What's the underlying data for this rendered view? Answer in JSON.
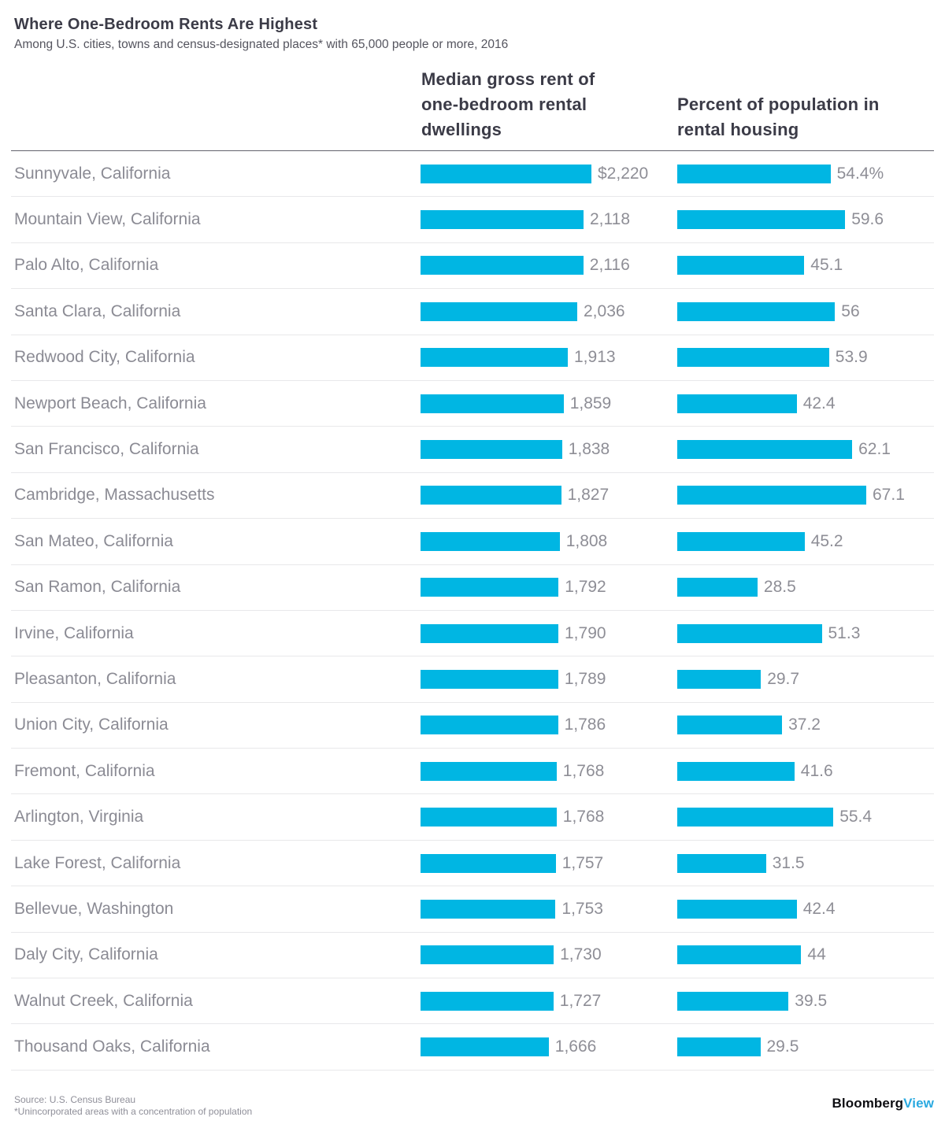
{
  "header": {
    "title": "Where One-Bedroom Rents Are Highest",
    "subtitle": "Among U.S. cities, towns and census-designated places* with 65,000 people or more, 2016"
  },
  "columns": {
    "rent_header": "Median gross rent of one-bedroom rental dwellings",
    "percent_header": "Percent of population in rental housing"
  },
  "rows": [
    {
      "city": "Sunnyvale, California",
      "rent": 2220,
      "rent_label": "$2,220",
      "pct": 54.4,
      "pct_label": "54.4%"
    },
    {
      "city": "Mountain View, California",
      "rent": 2118,
      "rent_label": "2,118",
      "pct": 59.6,
      "pct_label": "59.6"
    },
    {
      "city": "Palo Alto, California",
      "rent": 2116,
      "rent_label": "2,116",
      "pct": 45.1,
      "pct_label": "45.1"
    },
    {
      "city": "Santa Clara, California",
      "rent": 2036,
      "rent_label": "2,036",
      "pct": 56,
      "pct_label": "56"
    },
    {
      "city": "Redwood City, California",
      "rent": 1913,
      "rent_label": "1,913",
      "pct": 53.9,
      "pct_label": "53.9"
    },
    {
      "city": "Newport Beach, California",
      "rent": 1859,
      "rent_label": "1,859",
      "pct": 42.4,
      "pct_label": "42.4"
    },
    {
      "city": "San Francisco, California",
      "rent": 1838,
      "rent_label": "1,838",
      "pct": 62.1,
      "pct_label": "62.1"
    },
    {
      "city": "Cambridge, Massachusetts",
      "rent": 1827,
      "rent_label": "1,827",
      "pct": 67.1,
      "pct_label": "67.1"
    },
    {
      "city": "San Mateo, California",
      "rent": 1808,
      "rent_label": "1,808",
      "pct": 45.2,
      "pct_label": "45.2"
    },
    {
      "city": "San Ramon, California",
      "rent": 1792,
      "rent_label": "1,792",
      "pct": 28.5,
      "pct_label": "28.5"
    },
    {
      "city": "Irvine, California",
      "rent": 1790,
      "rent_label": "1,790",
      "pct": 51.3,
      "pct_label": "51.3"
    },
    {
      "city": "Pleasanton, California",
      "rent": 1789,
      "rent_label": "1,789",
      "pct": 29.7,
      "pct_label": "29.7"
    },
    {
      "city": "Union City, California",
      "rent": 1786,
      "rent_label": "1,786",
      "pct": 37.2,
      "pct_label": "37.2"
    },
    {
      "city": "Fremont, California",
      "rent": 1768,
      "rent_label": "1,768",
      "pct": 41.6,
      "pct_label": "41.6"
    },
    {
      "city": "Arlington, Virginia",
      "rent": 1768,
      "rent_label": "1,768",
      "pct": 55.4,
      "pct_label": "55.4"
    },
    {
      "city": "Lake Forest, California",
      "rent": 1757,
      "rent_label": "1,757",
      "pct": 31.5,
      "pct_label": "31.5"
    },
    {
      "city": "Bellevue, Washington",
      "rent": 1753,
      "rent_label": "1,753",
      "pct": 42.4,
      "pct_label": "42.4"
    },
    {
      "city": "Daly City, California",
      "rent": 1730,
      "rent_label": "1,730",
      "pct": 44,
      "pct_label": "44"
    },
    {
      "city": "Walnut Creek, California",
      "rent": 1727,
      "rent_label": "1,727",
      "pct": 39.5,
      "pct_label": "39.5"
    },
    {
      "city": "Thousand Oaks, California",
      "rent": 1666,
      "rent_label": "1,666",
      "pct": 29.5,
      "pct_label": "29.5"
    }
  ],
  "chart_data": {
    "type": "bar",
    "orientation": "horizontal",
    "title": "Where One-Bedroom Rents Are Highest",
    "subtitle": "Among U.S. cities, towns and census-designated places* with 65,000 people or more, 2016",
    "categories": [
      "Sunnyvale, California",
      "Mountain View, California",
      "Palo Alto, California",
      "Santa Clara, California",
      "Redwood City, California",
      "Newport Beach, California",
      "San Francisco, California",
      "Cambridge, Massachusetts",
      "San Mateo, California",
      "San Ramon, California",
      "Irvine, California",
      "Pleasanton, California",
      "Union City, California",
      "Fremont, California",
      "Arlington, Virginia",
      "Lake Forest, California",
      "Bellevue, Washington",
      "Daly City, California",
      "Walnut Creek, California",
      "Thousand Oaks, California"
    ],
    "series": [
      {
        "name": "Median gross rent of one-bedroom rental dwellings",
        "unit": "USD",
        "values": [
          2220,
          2118,
          2116,
          2036,
          1913,
          1859,
          1838,
          1827,
          1808,
          1792,
          1790,
          1789,
          1786,
          1768,
          1768,
          1757,
          1753,
          1730,
          1727,
          1666
        ],
        "labels": [
          "$2,220",
          "2,118",
          "2,116",
          "2,036",
          "1,913",
          "1,859",
          "1,838",
          "1,827",
          "1,808",
          "1,792",
          "1,790",
          "1,789",
          "1,786",
          "1,768",
          "1,768",
          "1,757",
          "1,753",
          "1,730",
          "1,727",
          "1,666"
        ]
      },
      {
        "name": "Percent of population in rental housing",
        "unit": "percent",
        "values": [
          54.4,
          59.6,
          45.1,
          56,
          53.9,
          42.4,
          62.1,
          67.1,
          45.2,
          28.5,
          51.3,
          29.7,
          37.2,
          41.6,
          55.4,
          31.5,
          42.4,
          44,
          39.5,
          29.5
        ],
        "labels": [
          "54.4%",
          "59.6",
          "45.1",
          "56",
          "53.9",
          "42.4",
          "62.1",
          "67.1",
          "45.2",
          "28.5",
          "51.3",
          "29.7",
          "37.2",
          "41.6",
          "55.4",
          "31.5",
          "42.4",
          "44",
          "39.5",
          "29.5"
        ]
      }
    ],
    "legend": "none",
    "grid": "off",
    "source": "Source: U.S. Census Bureau",
    "note": "*Unincorporated areas with a concentration of population"
  },
  "footer": {
    "source": "Source: U.S. Census Bureau",
    "note": "*Unincorporated areas with a concentration of population",
    "logo_black": "Bloomberg",
    "logo_accent": "View"
  },
  "colors": {
    "bar": "#00b6e3",
    "logo_accent": "#2aa9e0",
    "title_text": "#3b3b47",
    "label_text": "#8b8b94",
    "separator": "#e8e8ea",
    "header_rule": "#63636c"
  }
}
